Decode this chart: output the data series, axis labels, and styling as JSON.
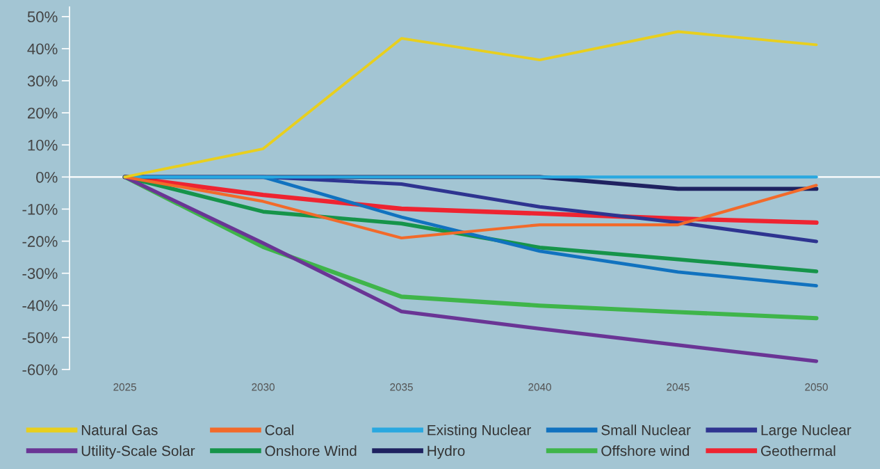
{
  "chart_data": {
    "type": "line",
    "x": [
      2025,
      2030,
      2035,
      2040,
      2045,
      2050
    ],
    "xlim": [
      2023,
      2052.3
    ],
    "xticks": [
      2025,
      2030,
      2035,
      2040,
      2045,
      2050
    ],
    "ylim": [
      -60,
      53
    ],
    "yticks": [
      {
        "value": 50,
        "label": "50%"
      },
      {
        "value": 40,
        "label": "40%"
      },
      {
        "value": 30,
        "label": "30%"
      },
      {
        "value": 20,
        "label": "20%"
      },
      {
        "value": 10,
        "label": "10%"
      },
      {
        "value": 0,
        "label": "0%"
      },
      {
        "value": -10,
        "label": "-10%"
      },
      {
        "value": -20,
        "label": "-20%"
      },
      {
        "value": -30,
        "label": "-30%"
      },
      {
        "value": -40,
        "label": "-40%"
      },
      {
        "value": -50,
        "label": "-50%"
      },
      {
        "value": -60,
        "label": "-60%"
      }
    ],
    "ref_lines": [
      {
        "axis": "y",
        "value": 0,
        "color": "#ffffff"
      }
    ],
    "grid": false,
    "legend": "bottom",
    "marker": "none",
    "line_style": "solid",
    "series": [
      {
        "name": "Natural Gas",
        "color": "#e8cf1e",
        "values": [
          0,
          8.8,
          43.2,
          36.5,
          45.3,
          41.2
        ]
      },
      {
        "name": "Coal",
        "color": "#f26a2a",
        "values": [
          0,
          -7.6,
          -19.0,
          -14.9,
          -14.9,
          -2.6
        ]
      },
      {
        "name": "Existing Nuclear",
        "color": "#29a8e0",
        "values": [
          0,
          0,
          0,
          0,
          0,
          0
        ]
      },
      {
        "name": "Small Nuclear",
        "color": "#1172bf",
        "values": [
          0,
          0,
          -12.5,
          -23.1,
          -29.6,
          -33.9
        ]
      },
      {
        "name": "Large Nuclear",
        "color": "#2e3490",
        "values": [
          0,
          0,
          -2.2,
          -9.3,
          -14.2,
          -20.1
        ]
      },
      {
        "name": "Utility-Scale Solar",
        "color": "#6a3595",
        "values": [
          0,
          -20.6,
          -41.9,
          -47.3,
          -52.4,
          -57.4
        ]
      },
      {
        "name": "Onshore Wind",
        "color": "#16944a",
        "values": [
          0,
          -10.8,
          -14.5,
          -22.0,
          -25.7,
          -29.4
        ]
      },
      {
        "name": "Hydro",
        "color": "#1f2260",
        "values": [
          0,
          0,
          0,
          0,
          -3.7,
          -3.7
        ]
      },
      {
        "name": "Offshore wind",
        "color": "#3fb54a",
        "values": [
          0,
          -21.8,
          -37.3,
          -40.1,
          -42.1,
          -44.0
        ]
      },
      {
        "name": "Geothermal",
        "color": "#ee2431",
        "values": [
          0,
          -5.6,
          -9.9,
          -11.4,
          -13.0,
          -14.2
        ]
      }
    ]
  }
}
